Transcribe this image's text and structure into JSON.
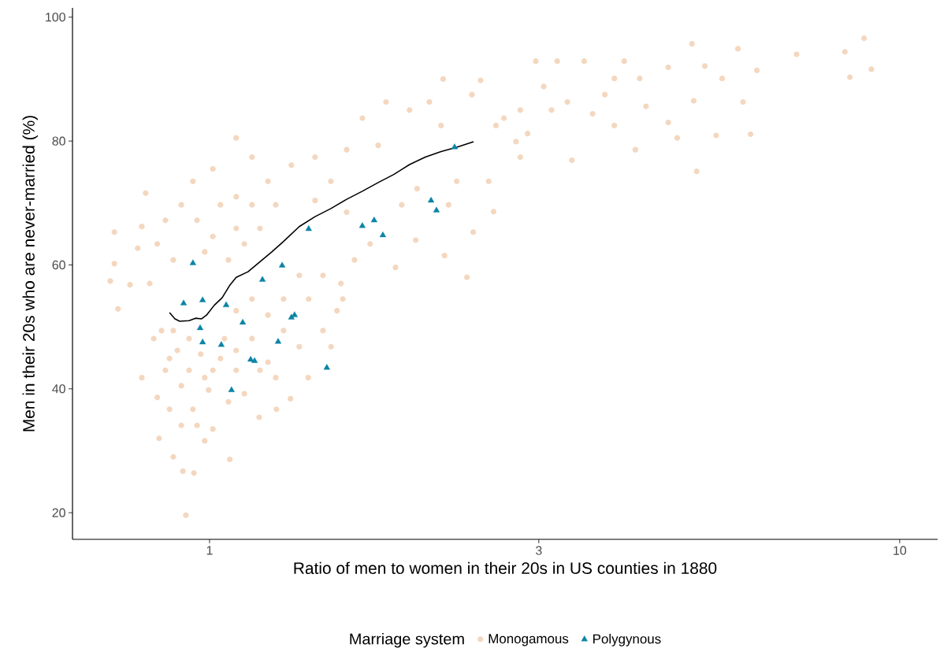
{
  "chart_data": {
    "type": "scatter",
    "xlabel": "Ratio of men to women in their 20s in US counties in 1880",
    "ylabel": "Men in their 20s who are never-married (%)",
    "legend_title": "Marriage system",
    "legend": "bottom",
    "log": "x",
    "grid": false,
    "xlim": [
      0.633,
      11.35
    ],
    "xticks": [
      1,
      3,
      10
    ],
    "ylim": [
      15.7,
      101.5
    ],
    "yticks": [
      20,
      40,
      60,
      80,
      100
    ],
    "series": [
      {
        "name": "Monogamous",
        "marker": "circle",
        "color": "#d55e00",
        "x": [
          0.924,
          0.949,
          0.915,
          5.08,
          8.88,
          9.1,
          8.33,
          8.47,
          7.09,
          6.08,
          6.21,
          5.83,
          5.93,
          5.42,
          5.0,
          5.03,
          5.22,
          5.53,
          4.62,
          4.62,
          4.2,
          3.99,
          3.49,
          3.19,
          2.97,
          3.35,
          4.14,
          3.74,
          3.59,
          3.05,
          2.82,
          2.6,
          2.4,
          2.18,
          2.47,
          2.36,
          2.41,
          2.58,
          2.67,
          2.78,
          3.13,
          3.3,
          3.86,
          4.29,
          4.76,
          3.86,
          2.19,
          1.99,
          1.86,
          1.55,
          1.56,
          1.53,
          1.31,
          1.46,
          1.5,
          1.39,
          1.25,
          1.18,
          1.07,
          0.845,
          0.984,
          1.011,
          0.718,
          0.728,
          0.728,
          0.737,
          0.767,
          0.787,
          0.808,
          0.798,
          0.819,
          0.798,
          0.83,
          0.84,
          0.863,
          0.875,
          0.91,
          0.946,
          0.934,
          0.971,
          0.898,
          1.011,
          1.051,
          1.093,
          1.123,
          1.065,
          0.997,
          0.91,
          0.875,
          0.852,
          0.886,
          0.934,
          0.984,
          1.037,
          1.093,
          1.152,
          1.215,
          1.215,
          1.28,
          1.349,
          1.392,
          1.46,
          1.349,
          1.28,
          1.152,
          1.093,
          1.065,
          1.011,
          0.959,
          0.91,
          0.863,
          0.84,
          0.886,
          0.984,
          1.037,
          1.093,
          1.152,
          1.093,
          1.123,
          1.183,
          1.247,
          1.215,
          1.093,
          1.152,
          1.011,
          0.946,
          1.314,
          1.422,
          1.499,
          1.58,
          1.665,
          1.802,
          1.949,
          2.082,
          2.165,
          1.755,
          1.58,
          1.422,
          1.709,
          1.622,
          1.899,
          1.999,
          2.281,
          2.538,
          2.82,
          2.89,
          2.22,
          1.247,
          1.183,
          0.959,
          0.886
        ],
        "values": [
          19.6,
          26.4,
          26.7,
          75.1,
          96.6,
          91.6,
          94.4,
          90.3,
          94.0,
          81.1,
          91.4,
          94.9,
          86.3,
          80.9,
          95.7,
          86.5,
          92.1,
          90.1,
          91.9,
          83.0,
          90.1,
          92.9,
          92.9,
          92.9,
          92.9,
          76.9,
          78.6,
          87.5,
          84.4,
          88.8,
          85.0,
          82.5,
          87.5,
          90.0,
          89.8,
          58.0,
          65.3,
          68.6,
          83.7,
          79.9,
          85.0,
          86.3,
          82.5,
          85.6,
          80.5,
          90.1,
          61.5,
          64.0,
          59.6,
          57.0,
          54.5,
          52.6,
          38.4,
          49.4,
          46.8,
          41.8,
          36.7,
          35.4,
          28.6,
          32.0,
          31.6,
          33.5,
          57.4,
          65.3,
          60.2,
          52.9,
          56.8,
          62.7,
          71.6,
          66.2,
          57.0,
          41.8,
          48.1,
          38.6,
          43.0,
          36.7,
          34.1,
          36.7,
          43.0,
          45.6,
          46.2,
          43.0,
          48.1,
          43.0,
          39.2,
          37.9,
          39.8,
          40.5,
          44.9,
          49.4,
          49.4,
          48.1,
          41.8,
          44.9,
          46.2,
          48.1,
          44.3,
          51.9,
          49.4,
          46.8,
          54.5,
          58.3,
          58.3,
          54.5,
          54.5,
          52.6,
          60.8,
          64.6,
          67.2,
          69.7,
          67.2,
          63.4,
          60.8,
          62.1,
          69.7,
          71.0,
          69.7,
          65.9,
          63.4,
          65.9,
          69.7,
          73.5,
          80.5,
          77.4,
          75.5,
          73.5,
          76.1,
          77.4,
          73.5,
          78.6,
          83.7,
          86.3,
          85.0,
          86.3,
          82.5,
          79.3,
          68.5,
          70.4,
          63.4,
          60.8,
          69.7,
          72.3,
          73.5,
          73.5,
          77.4,
          81.2,
          69.7,
          41.8,
          43.0,
          34.1,
          29.0
        ]
      },
      {
        "name": "Polygynous",
        "marker": "triangle",
        "color": "#0b84a5",
        "x": [
          0.946,
          0.917,
          0.977,
          0.969,
          0.977,
          1.04,
          1.057,
          1.117,
          1.147,
          1.162,
          1.076,
          1.193,
          1.274,
          1.257,
          1.314,
          1.328,
          1.392,
          1.479,
          1.665,
          1.732,
          1.783,
          2.094,
          2.132,
          2.265
        ],
        "values": [
          60.3,
          53.8,
          54.3,
          49.8,
          47.5,
          47.1,
          53.5,
          50.7,
          44.7,
          44.5,
          39.8,
          57.6,
          59.9,
          47.6,
          51.5,
          51.9,
          65.8,
          43.4,
          66.3,
          67.2,
          64.8,
          70.4,
          68.8,
          79.0
        ]
      },
      {
        "type": "line",
        "marker": "none",
        "color": "#000000",
        "x": [
          0.875,
          0.891,
          0.905,
          0.934,
          0.954,
          0.974,
          0.99,
          1.016,
          1.043,
          1.071,
          1.093,
          1.137,
          1.177,
          1.231,
          1.28,
          1.349,
          1.422,
          1.499,
          1.58,
          1.665,
          1.755,
          1.849,
          1.949,
          2.054,
          2.165,
          2.281,
          2.413
        ],
        "values": [
          52.3,
          51.3,
          50.9,
          51.0,
          51.4,
          51.3,
          51.9,
          53.5,
          54.7,
          56.8,
          58.0,
          58.9,
          60.3,
          62.1,
          63.8,
          66.2,
          67.8,
          69.1,
          70.6,
          71.9,
          73.3,
          74.6,
          76.2,
          77.4,
          78.3,
          79.0,
          79.9
        ]
      }
    ]
  }
}
